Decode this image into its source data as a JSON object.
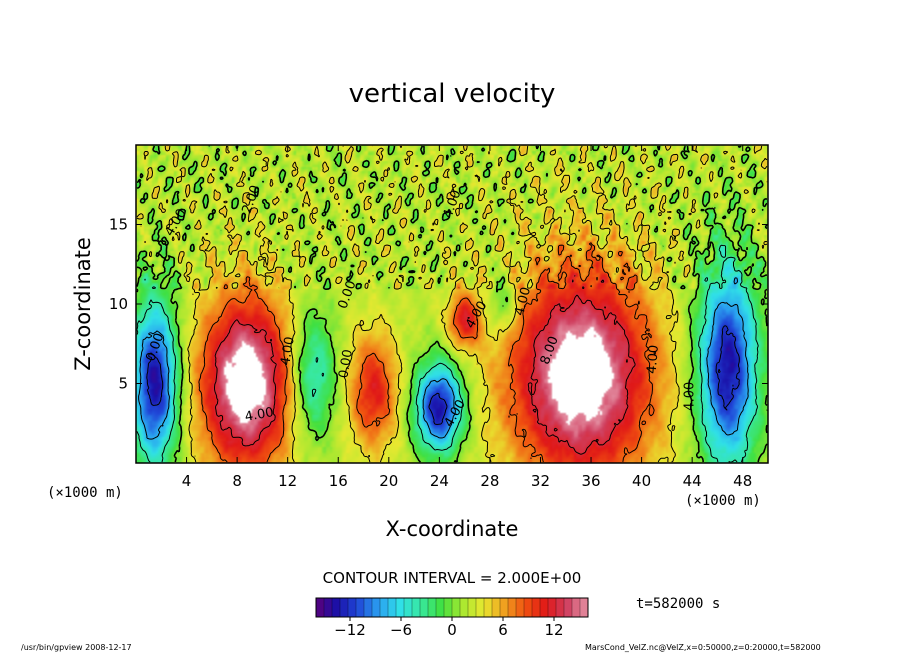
{
  "chart_data": {
    "type": "heatmap",
    "title": "vertical velocity",
    "xlabel": "X-coordinate",
    "ylabel": "Z-coordinate",
    "x_unit": "(×1000 m)",
    "y_unit": "(×1000 m)",
    "xlim": [
      0,
      50
    ],
    "ylim": [
      0,
      20
    ],
    "x_ticks": [
      4,
      8,
      12,
      16,
      20,
      24,
      28,
      32,
      36,
      40,
      44,
      48
    ],
    "y_ticks": [
      5,
      10,
      15
    ],
    "contour_interval_label": "CONTOUR INTERVAL = 2.000E+00",
    "colorbar": {
      "range": [
        -16,
        16
      ],
      "ticks": [
        -12,
        -6,
        0,
        6,
        12
      ],
      "colors": [
        "#5a007a",
        "#1a10a8",
        "#2048d8",
        "#2aa0f0",
        "#30e0e8",
        "#38e8a0",
        "#40e040",
        "#a8e830",
        "#e8e830",
        "#f0a020",
        "#f05010",
        "#e01818",
        "#d04060",
        "#e8a0b0"
      ]
    },
    "contour_labels": [
      {
        "text": "4.00",
        "x": 12.3,
        "y": 7.0,
        "rotate": -80
      },
      {
        "text": "4.00",
        "x": 9.8,
        "y": 2.8,
        "rotate": -10
      },
      {
        "text": "4.00",
        "x": 3.4,
        "y": 15.0,
        "rotate": -60
      },
      {
        "text": "2.00",
        "x": 9.4,
        "y": 16.5,
        "rotate": -70
      },
      {
        "text": "0.00",
        "x": 17.0,
        "y": 10.5,
        "rotate": -70
      },
      {
        "text": "0.00",
        "x": 16.9,
        "y": 6.2,
        "rotate": -80
      },
      {
        "text": "0.00",
        "x": 1.8,
        "y": 7.2,
        "rotate": -70
      },
      {
        "text": "4.00",
        "x": 25.5,
        "y": 3.0,
        "rotate": -60
      },
      {
        "text": "4.00",
        "x": 27.2,
        "y": 9.2,
        "rotate": -60
      },
      {
        "text": "4.00",
        "x": 25.3,
        "y": 16.2,
        "rotate": -70
      },
      {
        "text": "4.00",
        "x": 30.9,
        "y": 10.1,
        "rotate": -75
      },
      {
        "text": "8.00",
        "x": 33.0,
        "y": 7.0,
        "rotate": -70
      },
      {
        "text": "4.00",
        "x": 41.2,
        "y": 6.5,
        "rotate": -85
      },
      {
        "text": "4.00",
        "x": 44.1,
        "y": 4.2,
        "rotate": -90
      }
    ],
    "features": [
      {
        "kind": "updraft",
        "center_x": 8.7,
        "center_z": 5.0,
        "peak": 16,
        "rx": 4.6,
        "rz": 7.0
      },
      {
        "kind": "updraft",
        "center_x": 35.2,
        "center_z": 5.5,
        "peak": 16,
        "rx": 7.2,
        "rz": 8.5
      },
      {
        "kind": "updraft",
        "center_x": 18.8,
        "center_z": 4.5,
        "peak": 9,
        "rx": 2.4,
        "rz": 4.5
      },
      {
        "kind": "updraft",
        "center_x": 26.0,
        "center_z": 9.0,
        "peak": 9,
        "rx": 1.6,
        "rz": 2.2
      },
      {
        "kind": "downdraft",
        "center_x": 1.5,
        "center_z": 5.0,
        "peak": -16,
        "rx": 2.3,
        "rz": 6.5
      },
      {
        "kind": "downdraft",
        "center_x": 46.8,
        "center_z": 6.0,
        "peak": -16,
        "rx": 3.0,
        "rz": 8.0
      },
      {
        "kind": "downdraft",
        "center_x": 14.0,
        "center_z": 5.5,
        "peak": -8,
        "rx": 2.2,
        "rz": 5.0
      },
      {
        "kind": "downdraft",
        "center_x": 24.0,
        "center_z": 3.5,
        "peak": -16,
        "rx": 2.4,
        "rz": 3.5
      },
      {
        "kind": "downdraft",
        "center_x": 29.0,
        "center_z": 10.0,
        "peak": -5,
        "rx": 1.5,
        "rz": 2.5
      }
    ]
  },
  "legend": {
    "time_label": "t=582000 s"
  },
  "footer": {
    "left": "/usr/bin/gpview   2008-12-17",
    "right": "MarsCond_VelZ.nc@VelZ,x=0:50000,z=0:20000,t=582000"
  }
}
